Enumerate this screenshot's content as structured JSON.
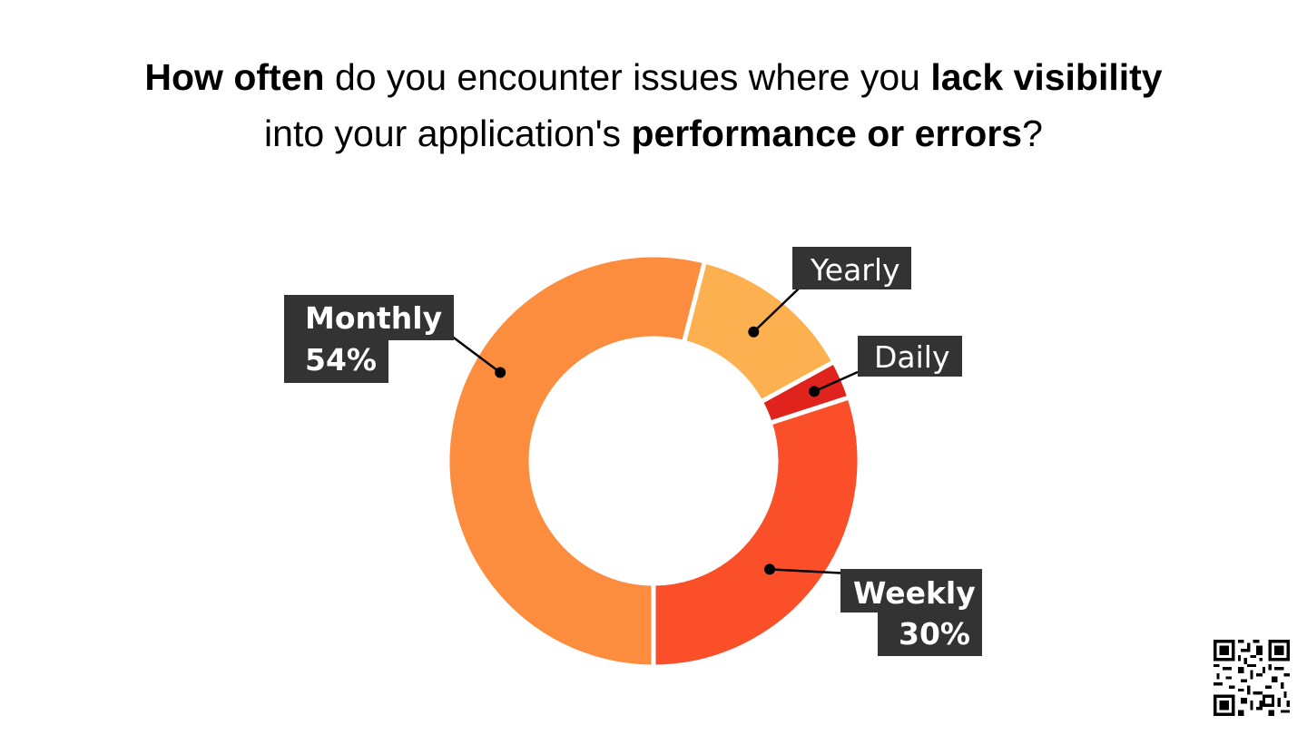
{
  "title": {
    "line1": {
      "bold1": "How often",
      "normal1": " do you encounter issues where you ",
      "bold2": "lack visibility"
    },
    "line2": {
      "normal1": "into your application's ",
      "bold1": "performance or errors",
      "normal2": "?"
    }
  },
  "chart_data": {
    "type": "pie",
    "donut": true,
    "slices": [
      {
        "label": "Monthly",
        "value": 54,
        "value_text": "54%",
        "color": "#FC8D3F"
      },
      {
        "label": "Weekly",
        "value": 30,
        "value_text": "30%",
        "color": "#FB4F2A"
      },
      {
        "label": "Daily",
        "value": 3,
        "value_text": "",
        "color": "#E0231C"
      },
      {
        "label": "Yearly",
        "value": 13,
        "value_text": "",
        "color": "#FDB04F"
      }
    ]
  },
  "colors": {
    "label_bg": "#333333",
    "label_text": "#FFFFFF",
    "leader": "#000000"
  },
  "qr": {
    "icon": "qr-code-icon"
  }
}
